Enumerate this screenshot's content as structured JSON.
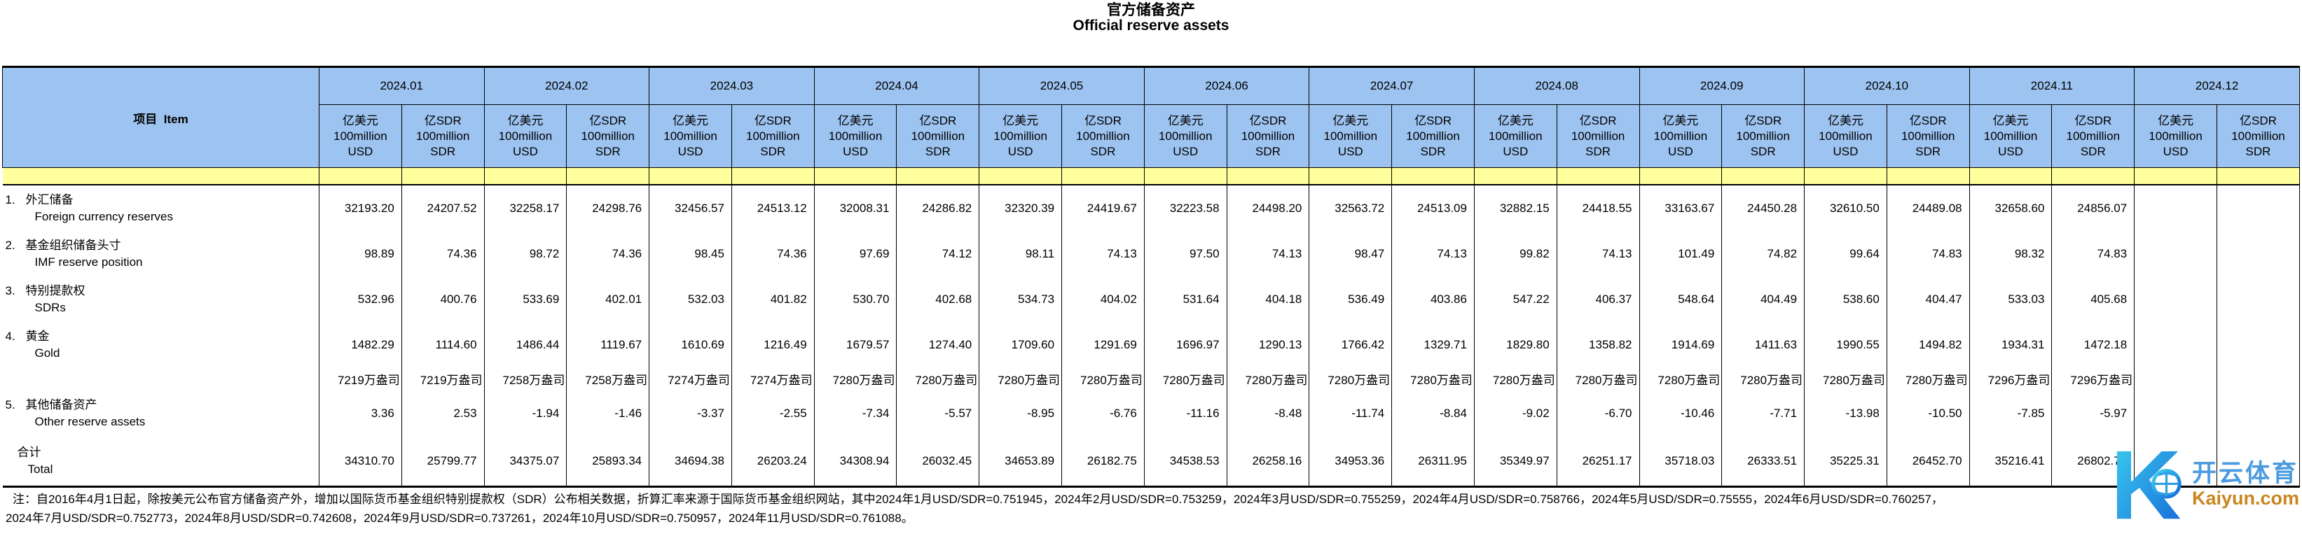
{
  "title": {
    "zh": "官方储备资产",
    "en": "Official reserve assets"
  },
  "colors": {
    "header_blue": "#9DC3F0",
    "band_yellow": "#FFFF9C",
    "border": "#000000"
  },
  "table": {
    "item_header": "项目  Item",
    "months": [
      "2024.01",
      "2024.02",
      "2024.03",
      "2024.04",
      "2024.05",
      "2024.06",
      "2024.07",
      "2024.08",
      "2024.09",
      "2024.10",
      "2024.11",
      "2024.12"
    ],
    "unit_usd": {
      "l1": "亿美元",
      "l2": "100million",
      "l3": "USD"
    },
    "unit_sdr": {
      "l1": "亿SDR",
      "l2": "100million",
      "l3": "SDR"
    },
    "rows": [
      {
        "no": "1.",
        "zh": "外汇储备",
        "en": "Foreign currency reserves",
        "usd": [
          "32193.20",
          "32258.17",
          "32456.57",
          "32008.31",
          "32320.39",
          "32223.58",
          "32563.72",
          "32882.15",
          "33163.67",
          "32610.50",
          "32658.60",
          ""
        ],
        "sdr": [
          "24207.52",
          "24298.76",
          "24513.12",
          "24286.82",
          "24419.67",
          "24498.20",
          "24513.09",
          "24418.55",
          "24450.28",
          "24489.08",
          "24856.07",
          ""
        ]
      },
      {
        "no": "2.",
        "zh": "基金组织储备头寸",
        "en": "IMF reserve position",
        "usd": [
          "98.89",
          "98.72",
          "98.45",
          "97.69",
          "98.11",
          "97.50",
          "98.47",
          "99.82",
          "101.49",
          "99.64",
          "98.32",
          ""
        ],
        "sdr": [
          "74.36",
          "74.36",
          "74.36",
          "74.12",
          "74.13",
          "74.13",
          "74.13",
          "74.13",
          "74.82",
          "74.83",
          "74.83",
          ""
        ]
      },
      {
        "no": "3.",
        "zh": "特别提款权",
        "en": "SDRs",
        "usd": [
          "532.96",
          "533.69",
          "532.03",
          "530.70",
          "534.73",
          "531.64",
          "536.49",
          "547.22",
          "548.64",
          "538.60",
          "533.03",
          ""
        ],
        "sdr": [
          "400.76",
          "402.01",
          "401.82",
          "402.68",
          "404.02",
          "404.18",
          "403.86",
          "406.37",
          "404.49",
          "404.47",
          "405.68",
          ""
        ]
      },
      {
        "no": "4.",
        "zh": "黄金",
        "en": "Gold",
        "usd": [
          "1482.29",
          "1486.44",
          "1610.69",
          "1679.57",
          "1709.60",
          "1696.97",
          "1766.42",
          "1829.80",
          "1914.69",
          "1990.55",
          "1934.31",
          ""
        ],
        "sdr": [
          "1114.60",
          "1119.67",
          "1216.49",
          "1274.40",
          "1291.69",
          "1290.13",
          "1329.71",
          "1358.82",
          "1411.63",
          "1494.82",
          "1472.18",
          ""
        ]
      },
      {
        "no": "",
        "zh": "",
        "en": "",
        "ounces": [
          "7219万盎司",
          "7258万盎司",
          "7274万盎司",
          "7280万盎司",
          "7280万盎司",
          "7280万盎司",
          "7280万盎司",
          "7280万盎司",
          "7280万盎司",
          "7280万盎司",
          "7296万盎司",
          ""
        ]
      },
      {
        "no": "5.",
        "zh": "其他储备资产",
        "en": "Other reserve assets",
        "usd": [
          "3.36",
          "-1.94",
          "-3.37",
          "-7.34",
          "-8.95",
          "-11.16",
          "-11.74",
          "-9.02",
          "-10.46",
          "-13.98",
          "-7.85",
          ""
        ],
        "sdr": [
          "2.53",
          "-1.46",
          "-2.55",
          "-5.57",
          "-6.76",
          "-8.48",
          "-8.84",
          "-6.70",
          "-7.71",
          "-10.50",
          "-5.97",
          ""
        ]
      },
      {
        "no": "",
        "zh": "合计",
        "en": "Total",
        "usd": [
          "34310.70",
          "34375.07",
          "34694.38",
          "34308.94",
          "34653.89",
          "34538.53",
          "34953.36",
          "35349.97",
          "35718.03",
          "35225.31",
          "35216.41",
          ""
        ],
        "sdr": [
          "25799.77",
          "25893.34",
          "26203.24",
          "26032.45",
          "26182.75",
          "26258.16",
          "26311.95",
          "26251.17",
          "26333.51",
          "26452.70",
          "26802.79",
          ""
        ]
      }
    ]
  },
  "notes": {
    "line1": "注：自2016年4月1日起，除按美元公布官方储备资产外，增加以国际货币基金组织特别提款权（SDR）公布相关数据，折算汇率来源于国际货币基金组织网站，其中2024年1月USD/SDR=0.751945，2024年2月USD/SDR=0.753259，2024年3月USD/SDR=0.755259，2024年4月USD/SDR=0.758766，2024年5月USD/SDR=0.75555，2024年6月USD/SDR=0.760257，",
    "line2": "2024年7月USD/SDR=0.752773，2024年8月USD/SDR=0.742608，2024年9月USD/SDR=0.737261，2024年10月USD/SDR=0.750957，2024年11月USD/SDR=0.761088。"
  },
  "watermark": {
    "logo_letter": "K",
    "brand_zh": "开云体育",
    "brand_url": "Kaiyun.com",
    "colors": {
      "cyan": "#3ED4F0",
      "blue": "#1565D8",
      "orange": "#C9861E"
    }
  }
}
